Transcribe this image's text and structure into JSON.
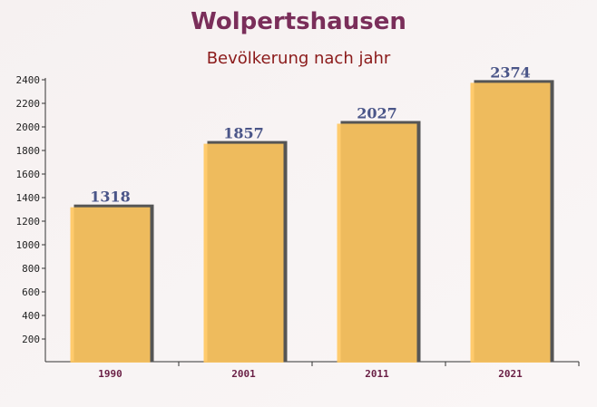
{
  "chart_data": {
    "type": "bar",
    "title": "Wolpertshausen",
    "subtitle": "Bevölkerung nach jahr",
    "categories": [
      "1990",
      "2001",
      "2011",
      "2021"
    ],
    "values": [
      1318,
      1857,
      2027,
      2374
    ],
    "color": "#ffc65e",
    "ylim": [
      0,
      2400
    ],
    "yticks": [
      200,
      400,
      600,
      800,
      1000,
      1200,
      1400,
      1600,
      1800,
      2000,
      2200,
      2400
    ]
  }
}
